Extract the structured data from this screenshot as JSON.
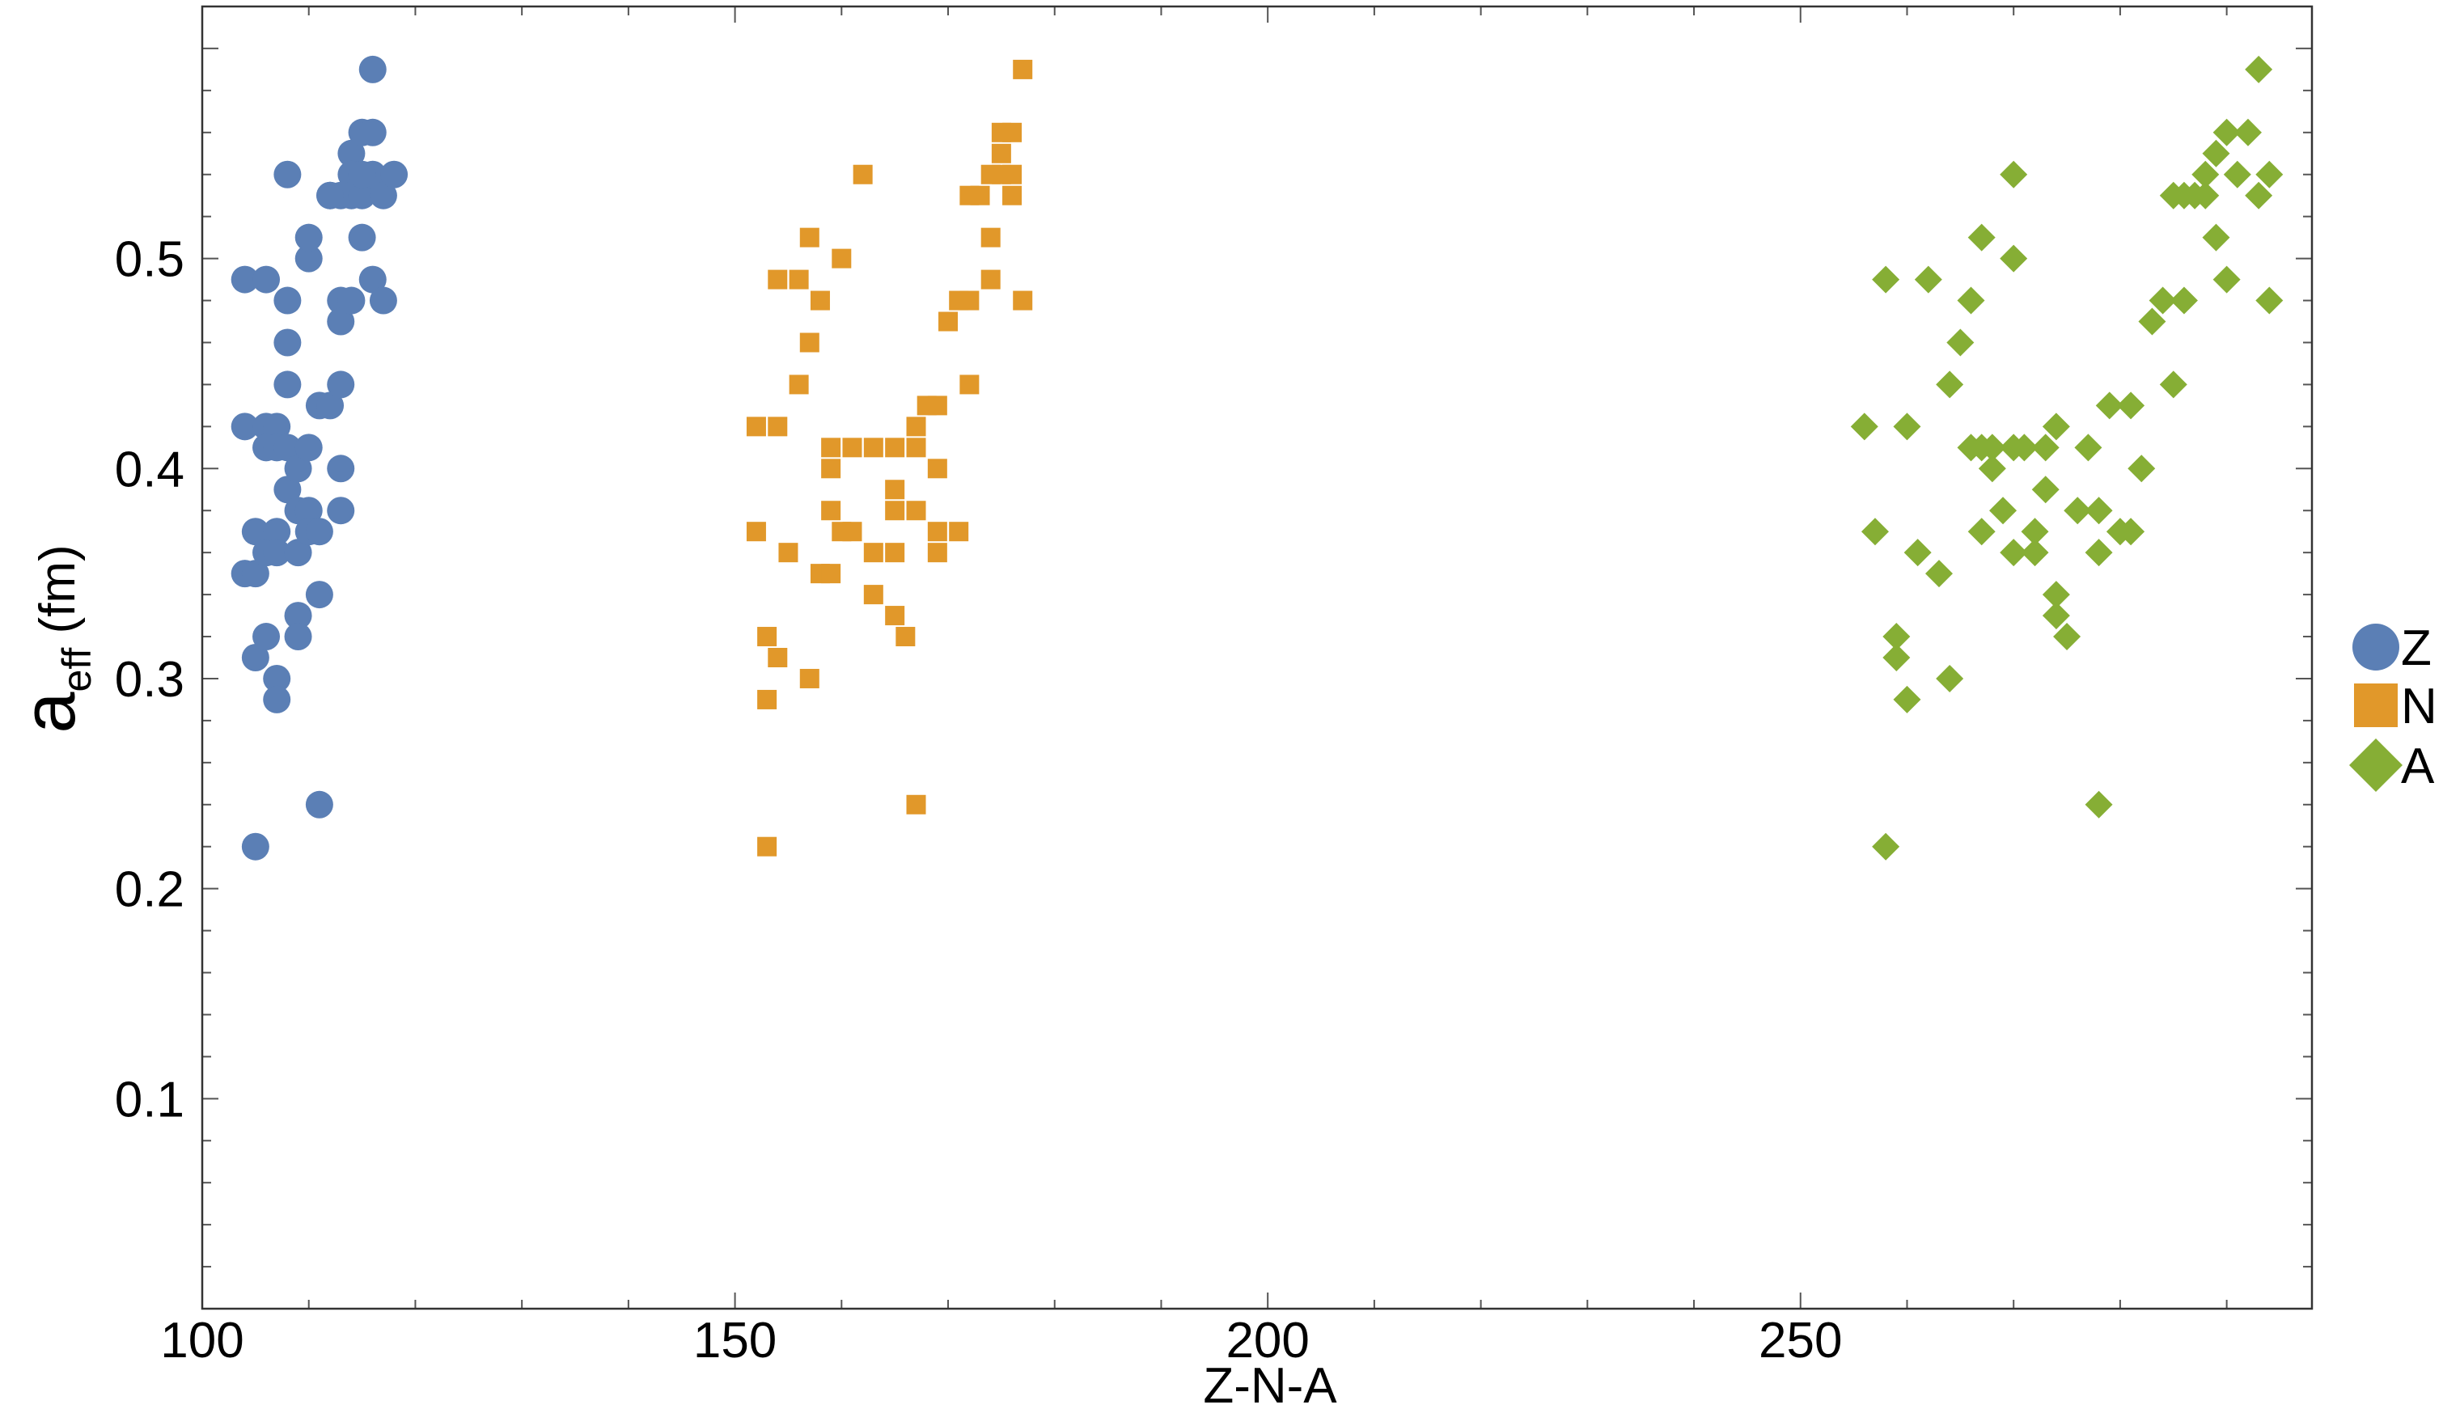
{
  "chart_data": {
    "type": "scatter",
    "title": "",
    "xlabel": "Z-N-A",
    "ylabel_main": "a",
    "ylabel_sub": "eff",
    "ylabel_unit": " (fm)",
    "xlim": [
      100,
      298
    ],
    "ylim": [
      0,
      0.62
    ],
    "x_ticks": [
      100,
      150,
      200,
      250
    ],
    "x_tick_labels": [
      "100",
      "150",
      "200",
      "250"
    ],
    "y_ticks": [
      0.1,
      0.2,
      0.3,
      0.4,
      0.5
    ],
    "y_tick_labels": [
      "0.1",
      "0.2",
      "0.3",
      "0.4",
      "0.5"
    ],
    "grid": false,
    "legend_position": "right",
    "series": [
      {
        "name": "Z",
        "marker": "circle",
        "color": "#5b7fb5",
        "points": [
          [
            104,
            0.49
          ],
          [
            106,
            0.49
          ],
          [
            104,
            0.42
          ],
          [
            106,
            0.42
          ],
          [
            107,
            0.42
          ],
          [
            106,
            0.41
          ],
          [
            107,
            0.41
          ],
          [
            108,
            0.41
          ],
          [
            104,
            0.35
          ],
          [
            105,
            0.35
          ],
          [
            105,
            0.37
          ],
          [
            107,
            0.37
          ],
          [
            106,
            0.36
          ],
          [
            107,
            0.36
          ],
          [
            105,
            0.31
          ],
          [
            106,
            0.32
          ],
          [
            107,
            0.3
          ],
          [
            107,
            0.29
          ],
          [
            105,
            0.22
          ],
          [
            108,
            0.54
          ],
          [
            108,
            0.48
          ],
          [
            108,
            0.46
          ],
          [
            108,
            0.44
          ],
          [
            108,
            0.39
          ],
          [
            109,
            0.38
          ],
          [
            109,
            0.4
          ],
          [
            110,
            0.41
          ],
          [
            109,
            0.36
          ],
          [
            109,
            0.33
          ],
          [
            109,
            0.32
          ],
          [
            110,
            0.38
          ],
          [
            110,
            0.37
          ],
          [
            111,
            0.37
          ],
          [
            110,
            0.5
          ],
          [
            110,
            0.51
          ],
          [
            111,
            0.43
          ],
          [
            112,
            0.43
          ],
          [
            111,
            0.34
          ],
          [
            111,
            0.24
          ],
          [
            112,
            0.53
          ],
          [
            113,
            0.53
          ],
          [
            113,
            0.48
          ],
          [
            113,
            0.47
          ],
          [
            113,
            0.44
          ],
          [
            113,
            0.4
          ],
          [
            113,
            0.38
          ],
          [
            114,
            0.55
          ],
          [
            114,
            0.54
          ],
          [
            114,
            0.53
          ],
          [
            114,
            0.48
          ],
          [
            115,
            0.56
          ],
          [
            115,
            0.53
          ],
          [
            115,
            0.51
          ],
          [
            116,
            0.59
          ],
          [
            116,
            0.56
          ],
          [
            116,
            0.54
          ],
          [
            116,
            0.49
          ],
          [
            117,
            0.53
          ],
          [
            117,
            0.48
          ],
          [
            118,
            0.54
          ],
          [
            112,
            0.53
          ],
          [
            115,
            0.54
          ]
        ]
      },
      {
        "name": "N",
        "marker": "square",
        "color": "#e1982a",
        "points": [
          [
            152,
            0.42
          ],
          [
            154,
            0.42
          ],
          [
            152,
            0.37
          ],
          [
            153,
            0.32
          ],
          [
            153,
            0.29
          ],
          [
            153,
            0.22
          ],
          [
            154,
            0.49
          ],
          [
            154,
            0.31
          ],
          [
            155,
            0.36
          ],
          [
            156,
            0.49
          ],
          [
            156,
            0.44
          ],
          [
            157,
            0.51
          ],
          [
            157,
            0.46
          ],
          [
            157,
            0.3
          ],
          [
            158,
            0.48
          ],
          [
            158,
            0.35
          ],
          [
            159,
            0.41
          ],
          [
            159,
            0.4
          ],
          [
            159,
            0.38
          ],
          [
            159,
            0.35
          ],
          [
            160,
            0.5
          ],
          [
            160,
            0.37
          ],
          [
            161,
            0.41
          ],
          [
            161,
            0.37
          ],
          [
            162,
            0.54
          ],
          [
            163,
            0.41
          ],
          [
            163,
            0.36
          ],
          [
            163,
            0.34
          ],
          [
            165,
            0.41
          ],
          [
            165,
            0.39
          ],
          [
            165,
            0.38
          ],
          [
            165,
            0.36
          ],
          [
            165,
            0.33
          ],
          [
            166,
            0.32
          ],
          [
            167,
            0.42
          ],
          [
            167,
            0.41
          ],
          [
            167,
            0.38
          ],
          [
            167,
            0.24
          ],
          [
            168,
            0.43
          ],
          [
            169,
            0.43
          ],
          [
            169,
            0.4
          ],
          [
            169,
            0.37
          ],
          [
            169,
            0.36
          ],
          [
            170,
            0.47
          ],
          [
            171,
            0.48
          ],
          [
            171,
            0.37
          ],
          [
            172,
            0.48
          ],
          [
            172,
            0.44
          ],
          [
            172,
            0.53
          ],
          [
            173,
            0.53
          ],
          [
            174,
            0.54
          ],
          [
            174,
            0.51
          ],
          [
            174,
            0.49
          ],
          [
            175,
            0.56
          ],
          [
            175,
            0.55
          ],
          [
            175,
            0.54
          ],
          [
            176,
            0.56
          ],
          [
            176,
            0.54
          ],
          [
            176,
            0.53
          ],
          [
            177,
            0.59
          ],
          [
            177,
            0.48
          ]
        ]
      },
      {
        "name": "A",
        "marker": "diamond",
        "color": "#86ae35",
        "points": [
          [
            256,
            0.42
          ],
          [
            257,
            0.37
          ],
          [
            258,
            0.49
          ],
          [
            258,
            0.22
          ],
          [
            259,
            0.32
          ],
          [
            259,
            0.31
          ],
          [
            260,
            0.42
          ],
          [
            260,
            0.29
          ],
          [
            261,
            0.36
          ],
          [
            262,
            0.49
          ],
          [
            263,
            0.35
          ],
          [
            264,
            0.44
          ],
          [
            264,
            0.3
          ],
          [
            265,
            0.46
          ],
          [
            266,
            0.48
          ],
          [
            266,
            0.41
          ],
          [
            267,
            0.51
          ],
          [
            267,
            0.41
          ],
          [
            267,
            0.37
          ],
          [
            268,
            0.41
          ],
          [
            268,
            0.4
          ],
          [
            269,
            0.38
          ],
          [
            270,
            0.54
          ],
          [
            270,
            0.5
          ],
          [
            270,
            0.41
          ],
          [
            270,
            0.36
          ],
          [
            271,
            0.41
          ],
          [
            272,
            0.37
          ],
          [
            272,
            0.36
          ],
          [
            273,
            0.41
          ],
          [
            273,
            0.39
          ],
          [
            274,
            0.42
          ],
          [
            274,
            0.34
          ],
          [
            274,
            0.33
          ],
          [
            275,
            0.32
          ],
          [
            276,
            0.38
          ],
          [
            277,
            0.41
          ],
          [
            278,
            0.38
          ],
          [
            278,
            0.36
          ],
          [
            278,
            0.24
          ],
          [
            279,
            0.43
          ],
          [
            280,
            0.37
          ],
          [
            281,
            0.43
          ],
          [
            281,
            0.37
          ],
          [
            282,
            0.4
          ],
          [
            283,
            0.47
          ],
          [
            284,
            0.48
          ],
          [
            285,
            0.53
          ],
          [
            285,
            0.44
          ],
          [
            286,
            0.53
          ],
          [
            286,
            0.48
          ],
          [
            287,
            0.53
          ],
          [
            288,
            0.53
          ],
          [
            288,
            0.54
          ],
          [
            289,
            0.55
          ],
          [
            289,
            0.51
          ],
          [
            290,
            0.56
          ],
          [
            290,
            0.49
          ],
          [
            291,
            0.54
          ],
          [
            292,
            0.56
          ],
          [
            293,
            0.59
          ],
          [
            293,
            0.53
          ],
          [
            294,
            0.54
          ],
          [
            294,
            0.48
          ]
        ]
      }
    ]
  }
}
